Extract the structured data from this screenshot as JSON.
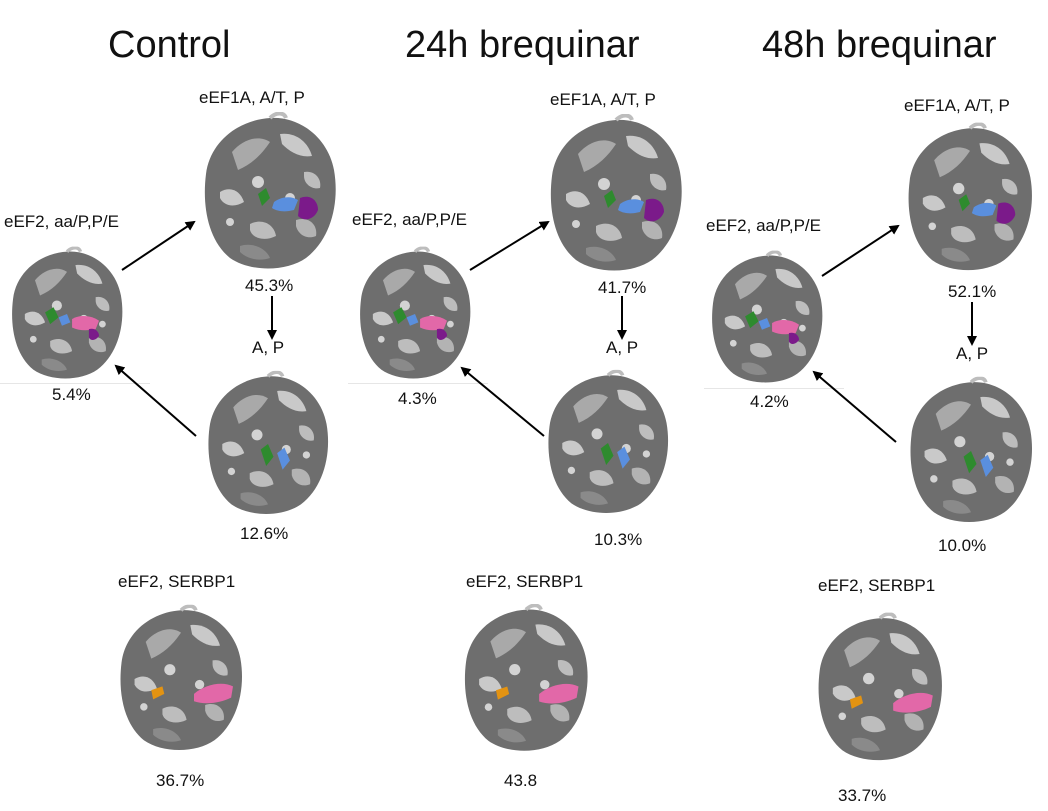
{
  "panels": [
    {
      "title": "Control",
      "state_top": {
        "label": "eEF1A, A/T, P",
        "percent": "45.3%"
      },
      "state_left": {
        "label": "eEF2, aa/P,P/E",
        "percent": "5.4%"
      },
      "state_bottom": {
        "label": "A, P",
        "percent": "12.6%"
      },
      "state_serbp1": {
        "label": "eEF2, SERBP1",
        "percent": "36.7%"
      }
    },
    {
      "title": "24h brequinar",
      "state_top": {
        "label": "eEF1A, A/T, P",
        "percent": "41.7%"
      },
      "state_left": {
        "label": "eEF2, aa/P,P/E",
        "percent": "4.3%"
      },
      "state_bottom": {
        "label": "A, P",
        "percent": "10.3%"
      },
      "state_serbp1": {
        "label": "eEF2, SERBP1",
        "percent": "43.8"
      }
    },
    {
      "title": "48h brequinar",
      "state_top": {
        "label": "eEF1A, A/T, P",
        "percent": "52.1%"
      },
      "state_left": {
        "label": "eEF2, aa/P,P/E",
        "percent": "4.2%"
      },
      "state_bottom": {
        "label": "A, P",
        "percent": "10.0%"
      },
      "state_serbp1": {
        "label": "eEF2, SERBP1",
        "percent": "33.7%"
      }
    }
  ],
  "colors": {
    "ribosome_dark": "#6e6e6e",
    "ribosome_light": "#c9c9c9",
    "trna_green": "#2e8b2e",
    "trna_blue": "#5a8fde",
    "eef_pink": "#e268a8",
    "eef_purple": "#7b1a8a",
    "serbp1_orange": "#e39312"
  }
}
